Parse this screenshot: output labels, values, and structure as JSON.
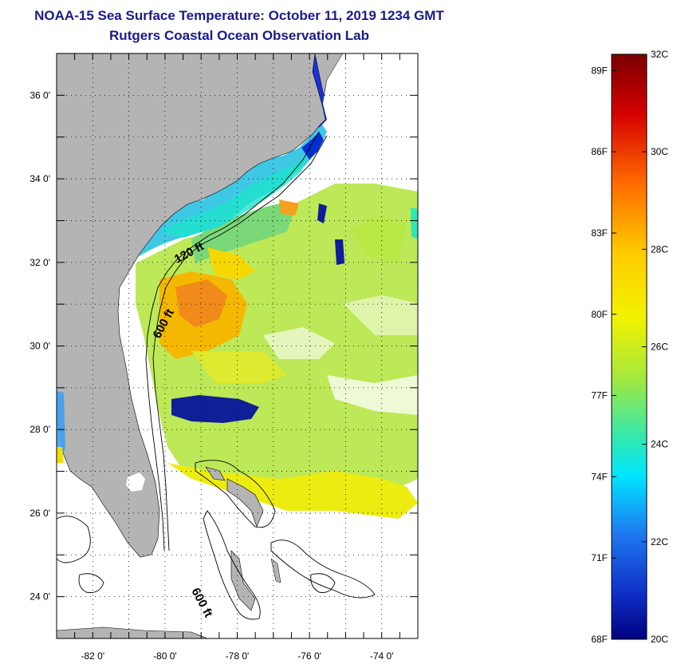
{
  "title_line1": "NOAA-15 Sea Surface Temperature:  October 11, 2019 1234 GMT",
  "title_line2": "Rutgers Coastal Ocean Observation Lab",
  "colors": {
    "land": "#b4b4b4",
    "ocean_missing": "#ffffff",
    "contour": "#000000",
    "title": "#1a1a8c"
  },
  "map": {
    "lat_range": [
      23,
      37
    ],
    "lon_range": [
      -83,
      -73
    ],
    "lat_labels": [
      "36 0'",
      "34 0'",
      "32 0'",
      "30 0'",
      "28 0'",
      "26 0'",
      "24 0'"
    ],
    "lon_labels": [
      "-82 0'",
      "-80 0'",
      "-78 0'",
      "-76 0'",
      "-74 0'"
    ],
    "contour_labels": {
      "shelf_120": "120 ft",
      "slope_600_north": "600 ft",
      "slope_600_south": "600 ft"
    }
  },
  "legend": {
    "fahrenheit_labels": [
      "89F",
      "86F",
      "83F",
      "80F",
      "77F",
      "74F",
      "71F",
      "68F"
    ],
    "celsius_labels": [
      "32C",
      "30C",
      "28C",
      "26C",
      "24C",
      "22C",
      "20C"
    ],
    "celsius_range": [
      20,
      32
    ]
  }
}
